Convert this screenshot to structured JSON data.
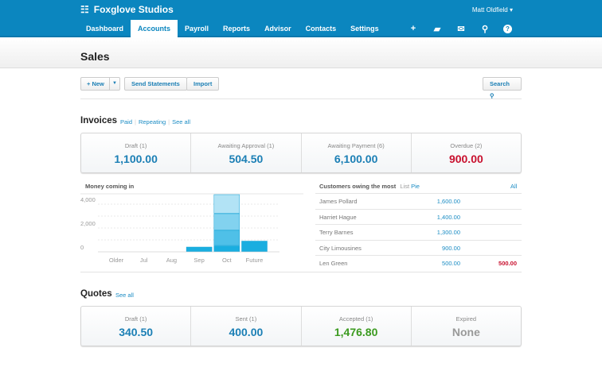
{
  "header": {
    "org": "Foxglove Studios",
    "user": "Matt Oldfield ▾",
    "nav": [
      "Dashboard",
      "Accounts",
      "Payroll",
      "Reports",
      "Advisor",
      "Contacts",
      "Settings"
    ],
    "active": "Accounts",
    "icons": [
      "plus-icon",
      "folder-icon",
      "mail-icon",
      "search-icon",
      "help-icon"
    ]
  },
  "page": {
    "title": "Sales"
  },
  "toolbar": {
    "new": "+ New",
    "send": "Send Statements",
    "import": "Import",
    "search": "Search"
  },
  "invoices": {
    "title": "Invoices",
    "links": [
      "Paid",
      "Repeating",
      "See all"
    ],
    "cards": [
      {
        "label": "Draft (1)",
        "value": "1,100.00"
      },
      {
        "label": "Awaiting Approval (1)",
        "value": "504.50"
      },
      {
        "label": "Awaiting Payment (6)",
        "value": "6,100.00"
      },
      {
        "label": "Overdue (2)",
        "value": "900.00"
      }
    ]
  },
  "chart_data": {
    "type": "bar",
    "title": "Money coming in",
    "categories": [
      "Older",
      "Jul",
      "Aug",
      "Sep",
      "Oct",
      "Future"
    ],
    "yticks": [
      "4,000",
      "2,000",
      "0"
    ],
    "ylim": [
      0,
      4000
    ],
    "stacks": [
      [
        0
      ],
      [
        0
      ],
      [
        0
      ],
      [
        400
      ],
      [
        500,
        1300,
        1400,
        1600
      ],
      [
        900
      ]
    ],
    "colors": [
      "#1aaee0",
      "#4fc0e8",
      "#82d2ef",
      "#b2e3f5"
    ]
  },
  "customers": {
    "title": "Customers owing the most",
    "views": [
      "List",
      "Pie"
    ],
    "all": "All",
    "rows": [
      {
        "name": "James Pollard",
        "amount": "1,600.00",
        "overdue": ""
      },
      {
        "name": "Harriet Hague",
        "amount": "1,400.00",
        "overdue": ""
      },
      {
        "name": "Terry Barnes",
        "amount": "1,300.00",
        "overdue": ""
      },
      {
        "name": "City Limousines",
        "amount": "900.00",
        "overdue": ""
      },
      {
        "name": "Len Green",
        "amount": "500.00",
        "overdue": "500.00"
      }
    ]
  },
  "quotes": {
    "title": "Quotes",
    "link": "See all",
    "cards": [
      {
        "label": "Draft (1)",
        "value": "340.50"
      },
      {
        "label": "Sent (1)",
        "value": "400.00"
      },
      {
        "label": "Accepted (1)",
        "value": "1,476.80"
      },
      {
        "label": "Expired",
        "value": "None"
      }
    ]
  }
}
